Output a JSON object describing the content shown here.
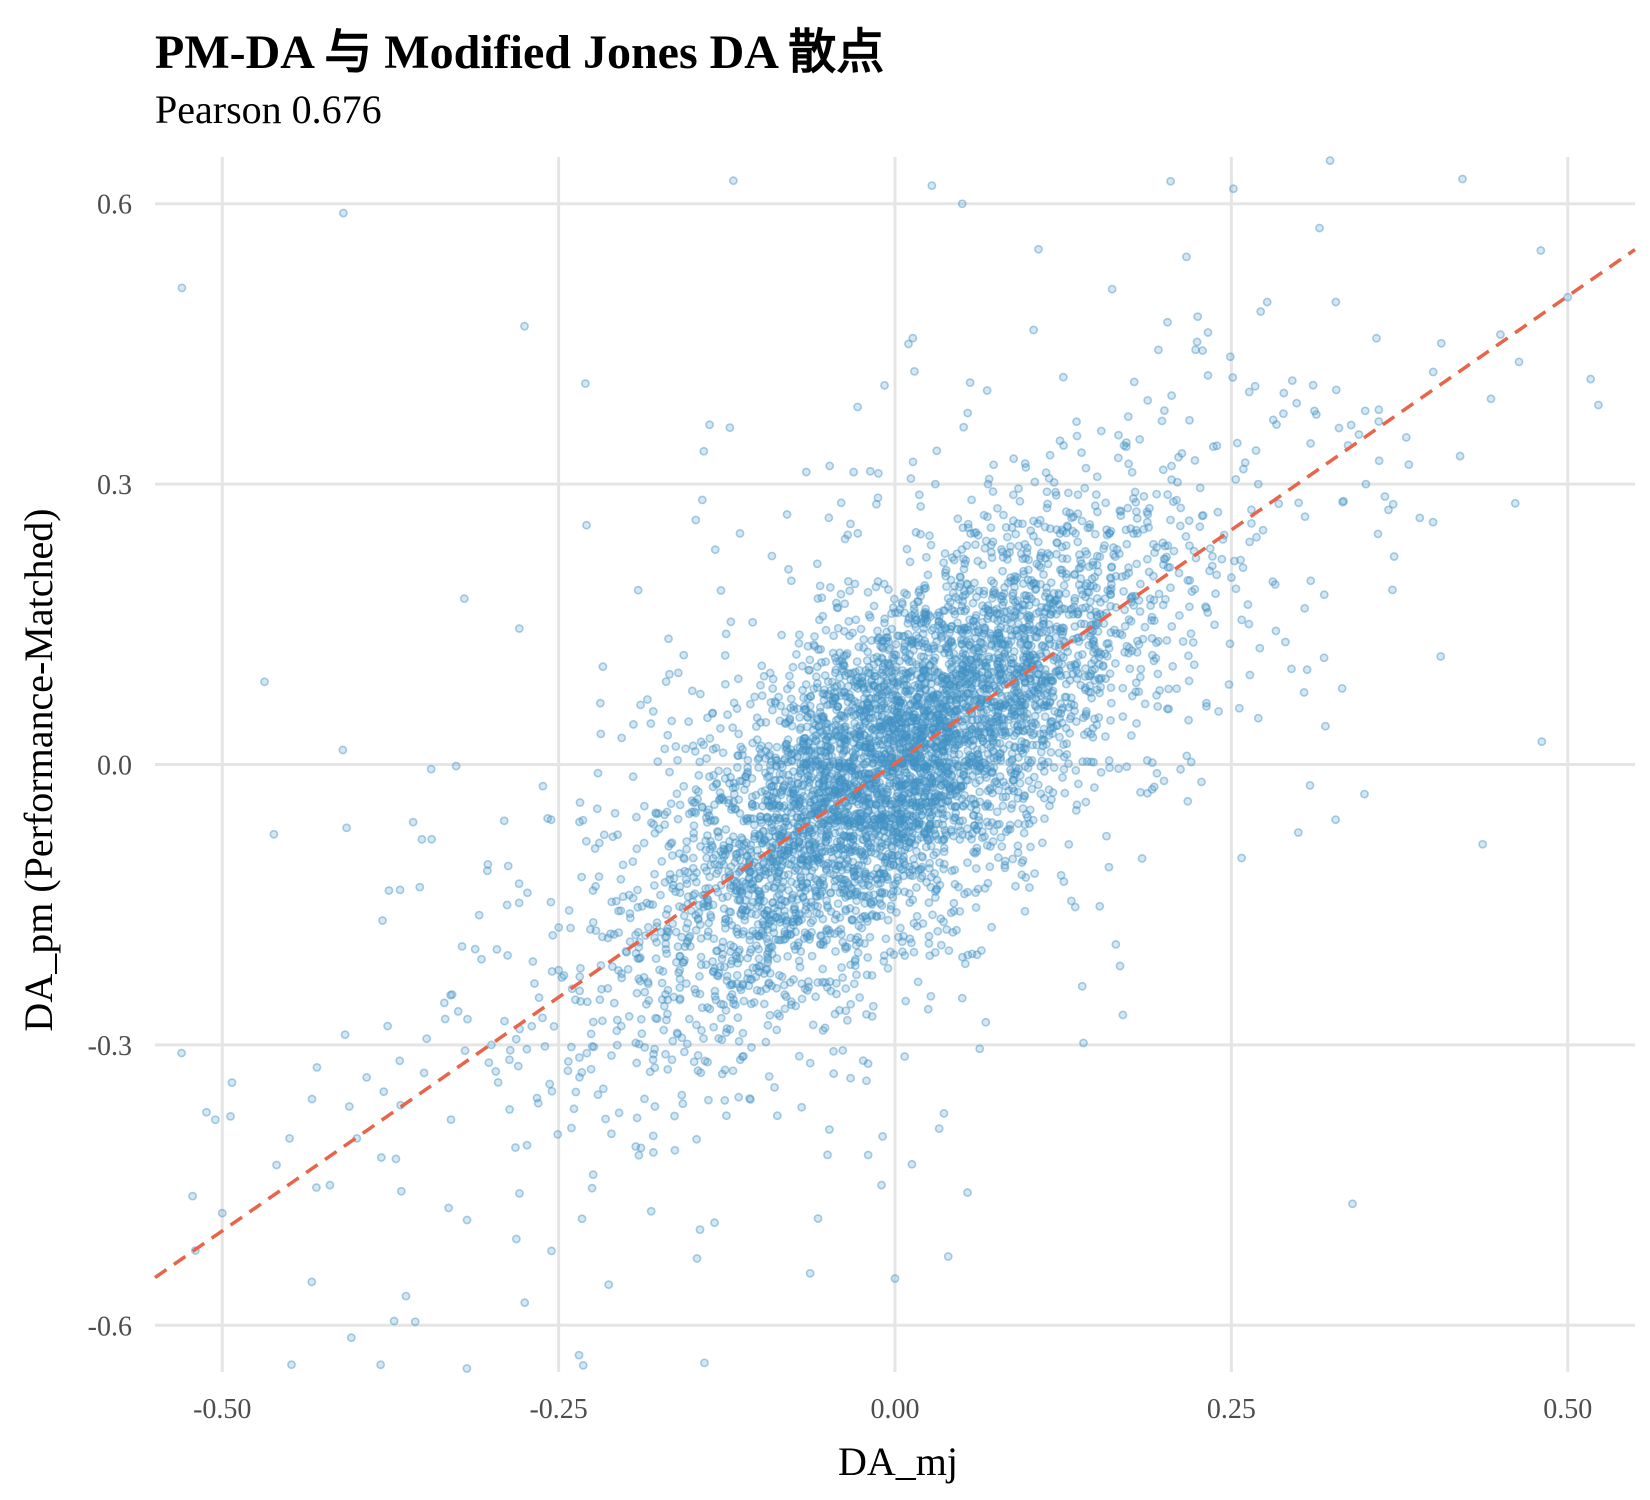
{
  "chart_data": {
    "type": "scatter",
    "title": "PM-DA 与 Modified Jones DA 散点",
    "subtitle": "Pearson 0.676",
    "xlabel": "DA_mj",
    "ylabel": "DA_pm (Performance-Matched)",
    "xlim": [
      -0.55,
      0.55
    ],
    "ylim": [
      -0.65,
      0.65
    ],
    "x_ticks": [
      -0.5,
      -0.25,
      0.0,
      0.25,
      0.5
    ],
    "x_tick_labels": [
      "-0.50",
      "-0.25",
      "0.00",
      "0.25",
      "0.50"
    ],
    "y_ticks": [
      -0.6,
      -0.3,
      0.0,
      0.3,
      0.6
    ],
    "y_tick_labels": [
      "-0.6",
      "-0.3",
      "0.0",
      "0.3",
      "0.6"
    ],
    "grid": true,
    "series": [
      {
        "kind": "points",
        "color": "#4292c6",
        "points": [
          [
            0.01,
            0.02
          ],
          [
            -0.02,
            -0.03
          ],
          [
            0.03,
            0.05
          ],
          [
            -0.04,
            -0.01
          ],
          [
            0.05,
            0.08
          ],
          [
            -0.06,
            -0.09
          ],
          [
            0.02,
            -0.04
          ],
          [
            -0.01,
            0.06
          ],
          [
            0.07,
            0.04
          ],
          [
            -0.08,
            -0.05
          ],
          [
            0.04,
            0.12
          ],
          [
            -0.03,
            -0.12
          ],
          [
            0.09,
            0.07
          ],
          [
            -0.1,
            -0.08
          ],
          [
            0.0,
            0.0
          ],
          [
            0.12,
            0.1
          ],
          [
            -0.12,
            -0.13
          ],
          [
            0.06,
            -0.02
          ],
          [
            -0.05,
            0.03
          ],
          [
            0.15,
            0.16
          ],
          [
            -0.15,
            -0.14
          ],
          [
            0.1,
            0.15
          ],
          [
            -0.09,
            -0.18
          ],
          [
            0.18,
            0.12
          ],
          [
            -0.18,
            -0.15
          ],
          [
            0.2,
            0.22
          ],
          [
            -0.2,
            -0.2
          ],
          [
            0.08,
            0.18
          ],
          [
            -0.07,
            -0.2
          ],
          [
            0.25,
            0.2
          ],
          [
            -0.25,
            -0.22
          ],
          [
            0.14,
            0.05
          ],
          [
            -0.13,
            -0.03
          ],
          [
            0.3,
            0.28
          ],
          [
            -0.3,
            -0.3
          ],
          [
            0.35,
            0.3
          ],
          [
            -0.35,
            -0.33
          ],
          [
            0.4,
            0.42
          ],
          [
            -0.4,
            -0.4
          ],
          [
            0.45,
            0.46
          ],
          [
            -0.45,
            -0.4
          ],
          [
            0.5,
            0.5
          ],
          [
            -0.5,
            -0.48
          ],
          [
            0.03,
            0.3
          ],
          [
            -0.02,
            -0.32
          ],
          [
            0.05,
            -0.25
          ],
          [
            -0.04,
            0.28
          ],
          [
            0.11,
            0.02
          ],
          [
            -0.11,
            -0.01
          ],
          [
            0.16,
            0.2
          ],
          [
            -0.16,
            -0.22
          ],
          [
            0.22,
            0.14
          ],
          [
            -0.22,
            -0.12
          ],
          [
            0.27,
            0.3
          ],
          [
            -0.27,
            -0.28
          ],
          [
            0.01,
            0.45
          ],
          [
            -0.01,
            -0.45
          ],
          [
            0.33,
            0.36
          ],
          [
            -0.33,
            -0.38
          ],
          [
            0.02,
            0.13
          ],
          [
            -0.03,
            -0.14
          ],
          [
            0.06,
            0.1
          ],
          [
            -0.06,
            -0.11
          ],
          [
            0.13,
            0.09
          ],
          [
            -0.14,
            -0.1
          ],
          [
            0.19,
            0.17
          ],
          [
            -0.19,
            -0.19
          ],
          [
            0.24,
            0.27
          ],
          [
            -0.24,
            -0.24
          ],
          [
            0.38,
            0.35
          ],
          [
            -0.38,
            -0.35
          ],
          [
            0.48,
            0.55
          ],
          [
            -0.52,
            -0.52
          ],
          [
            0.42,
            0.33
          ],
          [
            -0.42,
            -0.45
          ],
          [
            -0.53,
            0.51
          ],
          [
            0.34,
            -0.47
          ],
          [
            0.0,
            -0.55
          ],
          [
            0.05,
            0.6
          ],
          [
            -0.41,
            0.59
          ]
        ],
        "density_note_only_for_script": null
      },
      {
        "kind": "trend_line",
        "color": "#e8644a",
        "dash": true,
        "x": [
          -0.55,
          0.55
        ],
        "y": [
          -0.549,
          0.551
        ]
      }
    ]
  }
}
